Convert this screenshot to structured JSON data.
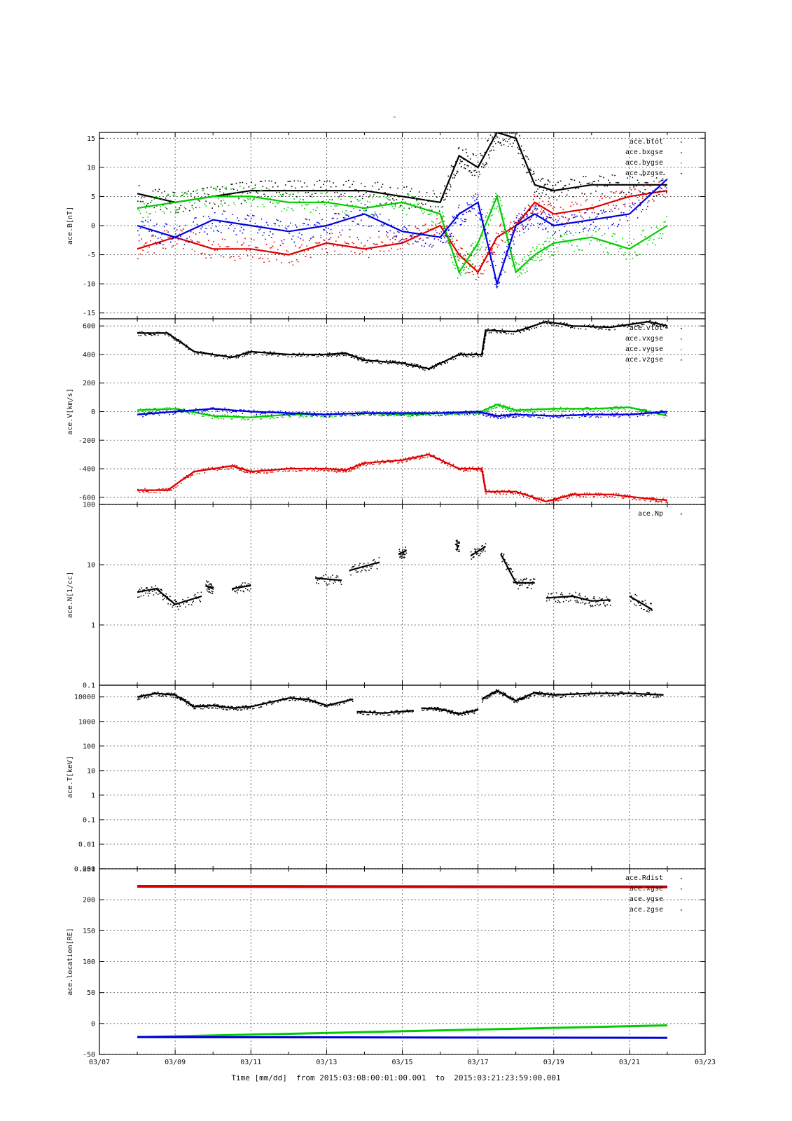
{
  "page": {
    "top_mark": "-",
    "time_footer": "Time [mm/dd]  from 2015:03:08:00:01:00.001  to  2015:03:21:23:59:00.001"
  },
  "colors": {
    "black": "#000000",
    "red": "#dd0000",
    "green": "#00cc00",
    "blue": "#0000dd"
  },
  "chart_data": [
    {
      "type": "scatter",
      "ylabel": "ace.B[nT]",
      "ylim": [
        -16,
        16
      ],
      "xlim": [
        "03/07",
        "03/23"
      ],
      "ytick_labels": [
        "15",
        "10",
        "5",
        "0",
        "-5",
        "-10",
        "-15"
      ],
      "grid": true,
      "legend_placement": "top-right",
      "series": [
        {
          "name": "ace.btot",
          "color": "#000000",
          "x": [
            "03/08",
            "03/09",
            "03/10",
            "03/11",
            "03/12",
            "03/13",
            "03/14",
            "03/15",
            "03/16",
            "03/16.5",
            "03/17",
            "03/17.5",
            "03/18",
            "03/18.5",
            "03/19",
            "03/20",
            "03/21",
            "03/22"
          ],
          "values": [
            5.5,
            4,
            5,
            6,
            6,
            6,
            6,
            5,
            4,
            12,
            10,
            16,
            15,
            7,
            6,
            7,
            7,
            7
          ]
        },
        {
          "name": "ace.bxgse",
          "color": "#dd0000",
          "x": [
            "03/08",
            "03/09",
            "03/10",
            "03/11",
            "03/12",
            "03/13",
            "03/14",
            "03/15",
            "03/16",
            "03/16.5",
            "03/17",
            "03/17.5",
            "03/18",
            "03/18.5",
            "03/19",
            "03/20",
            "03/21",
            "03/22"
          ],
          "values": [
            -4,
            -2,
            -4,
            -4,
            -5,
            -3,
            -4,
            -3,
            0,
            -5,
            -8,
            -2,
            0,
            4,
            2,
            3,
            5,
            6
          ]
        },
        {
          "name": "ace.bygse",
          "color": "#00cc00",
          "x": [
            "03/08",
            "03/09",
            "03/10",
            "03/11",
            "03/12",
            "03/13",
            "03/14",
            "03/15",
            "03/16",
            "03/16.5",
            "03/17",
            "03/17.5",
            "03/18",
            "03/18.5",
            "03/19",
            "03/20",
            "03/21",
            "03/22"
          ],
          "values": [
            3,
            4,
            5,
            5,
            4,
            4,
            3,
            4,
            2,
            -8,
            -3,
            5,
            -8,
            -5,
            -3,
            -2,
            -4,
            0
          ]
        },
        {
          "name": "ace.bzgse",
          "color": "#0000dd",
          "x": [
            "03/08",
            "03/09",
            "03/10",
            "03/11",
            "03/12",
            "03/13",
            "03/14",
            "03/15",
            "03/16",
            "03/16.5",
            "03/17",
            "03/17.5",
            "03/18",
            "03/18.5",
            "03/19",
            "03/20",
            "03/21",
            "03/22"
          ],
          "values": [
            0,
            -2,
            1,
            0,
            -1,
            0,
            2,
            -1,
            -2,
            2,
            4,
            -10,
            0,
            2,
            0,
            1,
            2,
            8
          ]
        }
      ]
    },
    {
      "type": "scatter",
      "ylabel": "ace.V[km/s]",
      "ylim": [
        -650,
        650
      ],
      "xlim": [
        "03/07",
        "03/23"
      ],
      "ytick_labels": [
        "600",
        "400",
        "200",
        "0",
        "-200",
        "-400",
        "-600"
      ],
      "grid": true,
      "legend_placement": "top-right",
      "series": [
        {
          "name": "ace.vtot",
          "color": "#000000",
          "x": [
            "03/08",
            "03/08.8",
            "03/09.5",
            "03/10.5",
            "03/11",
            "03/12",
            "03/13",
            "03/13.5",
            "03/14",
            "03/15",
            "03/15.7",
            "03/16.5",
            "03/17.1",
            "03/17.2",
            "03/18",
            "03/18.8",
            "03/19.5",
            "03/20.5",
            "03/21.5",
            "03/22"
          ],
          "values": [
            550,
            550,
            420,
            380,
            420,
            400,
            400,
            410,
            360,
            340,
            300,
            400,
            400,
            570,
            560,
            630,
            600,
            590,
            630,
            600
          ]
        },
        {
          "name": "ace.vxgse",
          "color": "#dd0000",
          "x": [
            "03/08",
            "03/08.8",
            "03/09.5",
            "03/10.5",
            "03/11",
            "03/12",
            "03/13",
            "03/13.5",
            "03/14",
            "03/15",
            "03/15.7",
            "03/16.5",
            "03/17.1",
            "03/17.2",
            "03/18",
            "03/18.8",
            "03/19.5",
            "03/20.5",
            "03/21.5",
            "03/22"
          ],
          "values": [
            -550,
            -550,
            -420,
            -380,
            -420,
            -400,
            -400,
            -410,
            -360,
            -340,
            -300,
            -400,
            -400,
            -560,
            -560,
            -630,
            -580,
            -580,
            -610,
            -620
          ]
        },
        {
          "name": "ace.vygse",
          "color": "#00cc00",
          "x": [
            "03/08",
            "03/09",
            "03/10",
            "03/11",
            "03/12",
            "03/13",
            "03/14",
            "03/15",
            "03/16",
            "03/17",
            "03/17.5",
            "03/18",
            "03/19",
            "03/20",
            "03/21",
            "03/22"
          ],
          "values": [
            10,
            20,
            -30,
            -40,
            -20,
            -20,
            -10,
            -20,
            -10,
            -10,
            50,
            10,
            20,
            20,
            30,
            -30
          ]
        },
        {
          "name": "ace.vzgse",
          "color": "#0000dd",
          "x": [
            "03/08",
            "03/09",
            "03/10",
            "03/11",
            "03/12",
            "03/13",
            "03/14",
            "03/15",
            "03/16",
            "03/17",
            "03/17.5",
            "03/18",
            "03/19",
            "03/20",
            "03/21",
            "03/22"
          ],
          "values": [
            -20,
            0,
            20,
            0,
            -10,
            -20,
            -10,
            -10,
            -10,
            0,
            -30,
            -20,
            -30,
            -20,
            -20,
            0
          ]
        }
      ]
    },
    {
      "type": "scatter",
      "ylabel": "ace.N[1/cc]",
      "yscale": "log",
      "ylim": [
        0.1,
        100
      ],
      "xlim": [
        "03/07",
        "03/23"
      ],
      "ytick_labels": [
        "100",
        "10",
        "1",
        "0.1"
      ],
      "grid": true,
      "legend_placement": "top-right",
      "series": [
        {
          "name": "ace.Np",
          "color": "#000000",
          "segments": [
            {
              "x": [
                "03/08",
                "03/08.5",
                "03/09",
                "03/09.7"
              ],
              "values": [
                3.5,
                4,
                2.2,
                3
              ]
            },
            {
              "x": [
                "03/09.8",
                "03/10"
              ],
              "values": [
                4.5,
                4
              ]
            },
            {
              "x": [
                "03/10.5",
                "03/11"
              ],
              "values": [
                4,
                4.5
              ]
            },
            {
              "x": [
                "03/12.7",
                "03/13.4"
              ],
              "values": [
                6,
                5.5
              ]
            },
            {
              "x": [
                "03/13.6",
                "03/14.4"
              ],
              "values": [
                8,
                11
              ]
            },
            {
              "x": [
                "03/14.9",
                "03/15.1"
              ],
              "values": [
                15,
                17
              ]
            },
            {
              "x": [
                "03/16.4",
                "03/16.5"
              ],
              "values": [
                22,
                20
              ]
            },
            {
              "x": [
                "03/16.8",
                "03/17.2"
              ],
              "values": [
                14,
                20
              ]
            },
            {
              "x": [
                "03/17.6",
                "03/18",
                "03/18.5"
              ],
              "values": [
                15,
                5,
                5
              ]
            },
            {
              "x": [
                "03/18.8",
                "03/19.5",
                "03/20",
                "03/20.5"
              ],
              "values": [
                2.8,
                3,
                2.5,
                2.6
              ]
            },
            {
              "x": [
                "03/21",
                "03/21.6"
              ],
              "values": [
                3,
                1.8
              ]
            }
          ]
        }
      ]
    },
    {
      "type": "scatter",
      "ylabel": "ace.T[keV]",
      "yscale": "log",
      "ylim": [
        0.001,
        30000
      ],
      "xlim": [
        "03/07",
        "03/23"
      ],
      "ytick_labels": [
        "10000",
        "1000",
        "100",
        "10",
        "1",
        "0.1",
        "0.01",
        "0.001"
      ],
      "grid": true,
      "legend_placement": "top-right",
      "series": [
        {
          "name": "",
          "color": "#000000",
          "segments": [
            {
              "x": [
                "03/08",
                "03/08.5",
                "03/09",
                "03/09.5",
                "03/10",
                "03/10.5",
                "03/11",
                "03/12",
                "03/12.5",
                "03/13",
                "03/13.7"
              ],
              "values": [
                10000,
                14000,
                12000,
                4000,
                4500,
                3500,
                4000,
                9000,
                8000,
                4500,
                8000
              ]
            },
            {
              "x": [
                "03/13.8",
                "03/14.5",
                "03/15.3"
              ],
              "values": [
                2500,
                2200,
                2800
              ]
            },
            {
              "x": [
                "03/15.5",
                "03/16",
                "03/16.5",
                "03/17"
              ],
              "values": [
                3500,
                3200,
                2000,
                3000
              ]
            },
            {
              "x": [
                "03/17.1",
                "03/17.5",
                "03/18",
                "03/18.5",
                "03/19",
                "03/20",
                "03/21",
                "03/21.9"
              ],
              "values": [
                8000,
                18000,
                7000,
                15000,
                12000,
                14000,
                14000,
                12000
              ]
            }
          ]
        }
      ]
    },
    {
      "type": "line",
      "ylabel": "ace.location[RE]",
      "ylim": [
        -50,
        250
      ],
      "xlim": [
        "03/07",
        "03/23"
      ],
      "ytick_labels": [
        "250",
        "200",
        "150",
        "100",
        "50",
        "0",
        "-50"
      ],
      "xtick_labels": [
        "03/07",
        "03/09",
        "03/11",
        "03/13",
        "03/15",
        "03/17",
        "03/19",
        "03/21",
        "03/23"
      ],
      "grid": true,
      "legend_placement": "top-right",
      "series": [
        {
          "name": "ace.Rdist",
          "color": "#000000",
          "x": [
            "03/08",
            "03/22"
          ],
          "values": [
            222,
            221
          ]
        },
        {
          "name": "ace.xgse",
          "color": "#dd0000",
          "x": [
            "03/08",
            "03/22"
          ],
          "values": [
            221,
            220
          ]
        },
        {
          "name": "ace.ygse",
          "color": "#00cc00",
          "x": [
            "03/08",
            "03/22"
          ],
          "values": [
            -22,
            -3
          ]
        },
        {
          "name": "ace.zgse",
          "color": "#0000dd",
          "x": [
            "03/08",
            "03/22"
          ],
          "values": [
            -22,
            -23
          ]
        }
      ]
    }
  ]
}
